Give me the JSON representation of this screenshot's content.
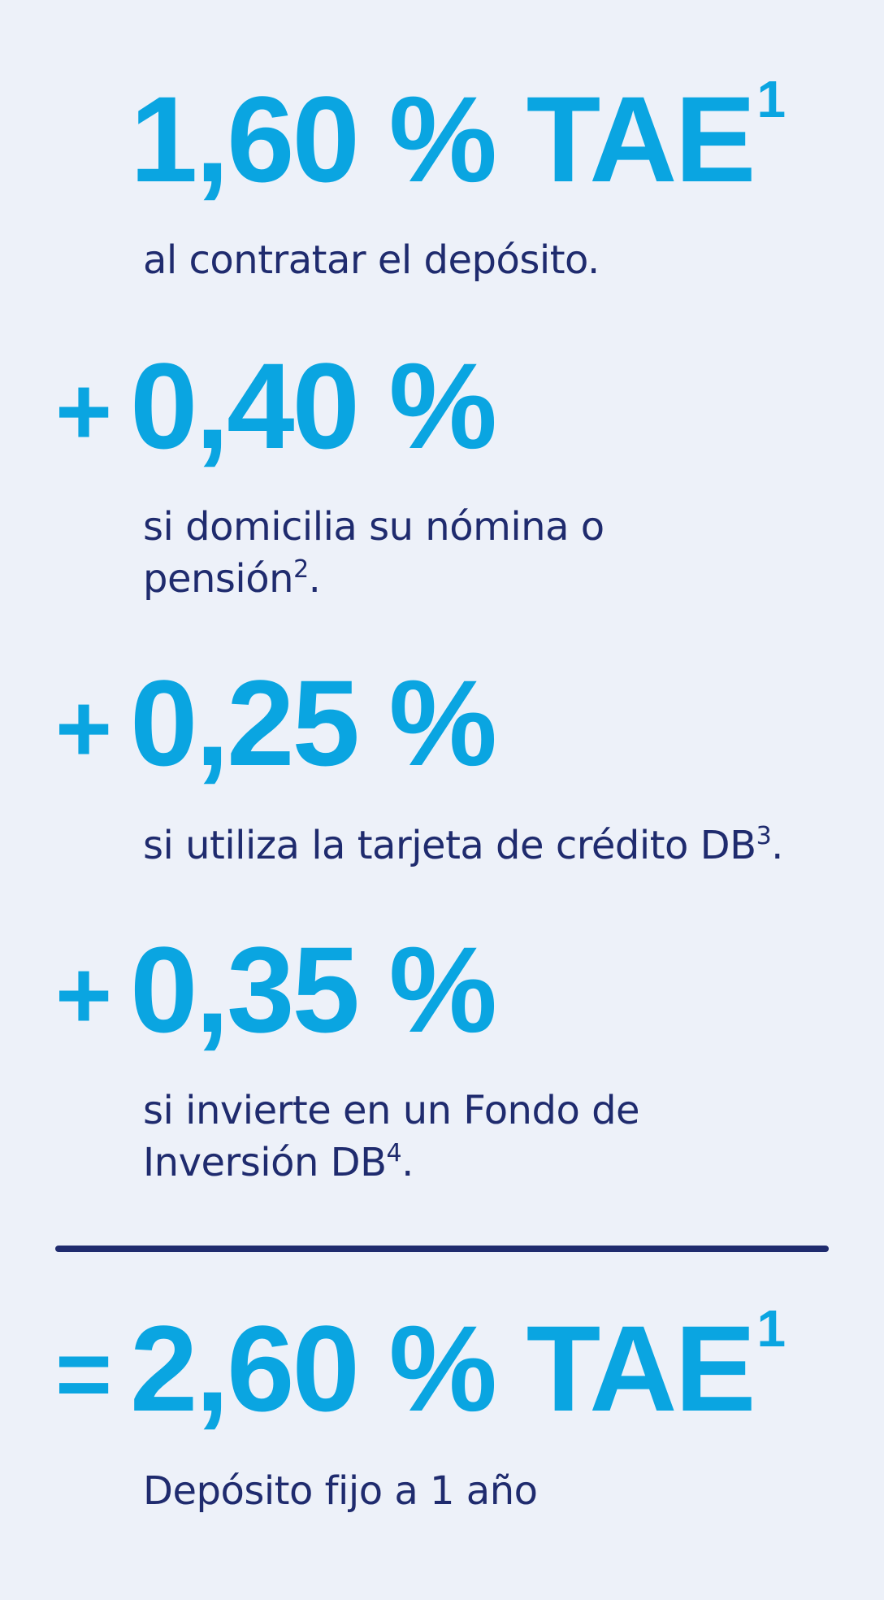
{
  "colors": {
    "background": "#edf1f9",
    "rate_blue": "#0aa5e1",
    "text_navy": "#1f2b6e",
    "divider": "#1f2b6e"
  },
  "base_rate": {
    "value": "1,60 % TAE",
    "footnote": "1",
    "description": "al contratar el depósito."
  },
  "bonuses": [
    {
      "operator": "+",
      "value": "0,40 %",
      "description": "si domicilia su nómina o pensión",
      "footnote": "2",
      "suffix": "."
    },
    {
      "operator": "+",
      "value": "0,25 %",
      "description": "si utiliza la tarjeta de crédito DB",
      "footnote": "3",
      "suffix": "."
    },
    {
      "operator": "+",
      "value": "0,35 %",
      "description": "si invierte en un Fondo de Inversión DB",
      "footnote": "4",
      "suffix": "."
    }
  ],
  "total": {
    "operator": "=",
    "value": "2,60 % TAE",
    "footnote": "1",
    "description": "Depósito fijo a 1 año"
  }
}
